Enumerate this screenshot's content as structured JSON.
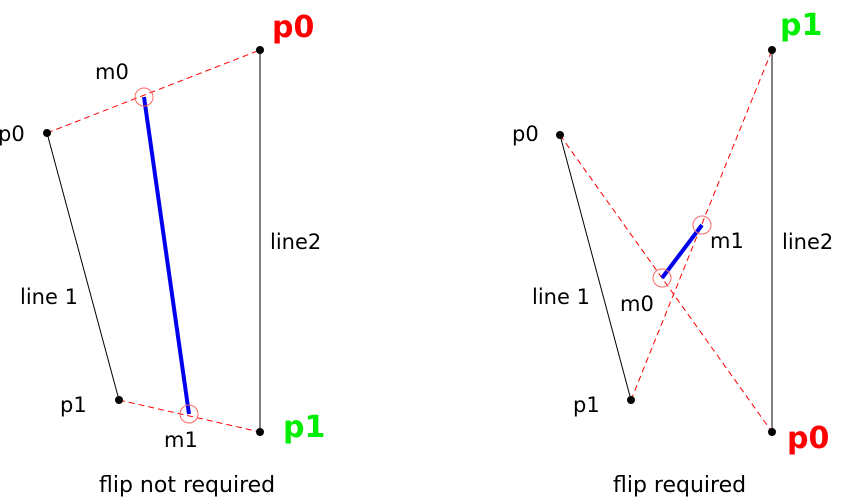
{
  "colors": {
    "red": "#ff0000",
    "green": "#00ee00",
    "blue": "#0000ee",
    "black": "#000000",
    "marker_circle": "#ff6666"
  },
  "left_panel": {
    "caption": "flip not required",
    "line1_p0_label": "p0",
    "line1_p1_label": "p1",
    "line1_label": "line 1",
    "line2_label": "line2",
    "line2_p0_label": "p0",
    "line2_p1_label": "p1",
    "m0_label": "m0",
    "m1_label": "m1"
  },
  "right_panel": {
    "caption": "flip required",
    "line1_p0_label": "p0",
    "line1_p1_label": "p1",
    "line1_label": "line 1",
    "line2_label": "line2",
    "line2_p0_label": "p0",
    "line2_p1_label": "p1",
    "m0_label": "m0",
    "m1_label": "m1"
  }
}
